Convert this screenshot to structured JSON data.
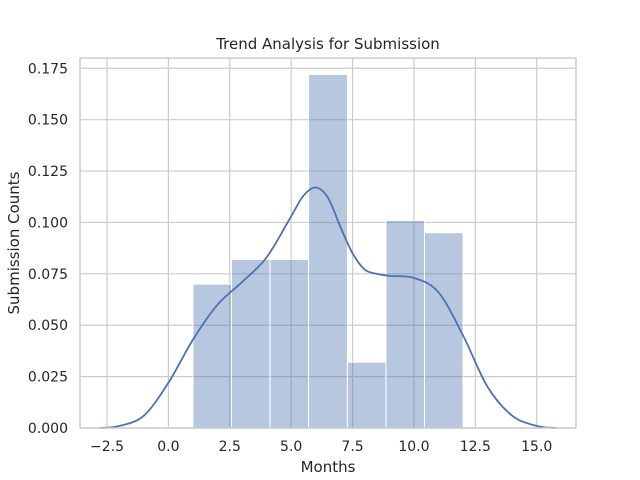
{
  "chart_data": {
    "type": "bar",
    "title": "Trend Analysis for Submission",
    "xlabel": "Months",
    "ylabel": "Submission Counts",
    "xlim": [
      -3.6,
      16.6
    ],
    "ylim": [
      0,
      0.18
    ],
    "xticks": [
      -2.5,
      0.0,
      2.5,
      5.0,
      7.5,
      10.0,
      12.5,
      15.0
    ],
    "xtick_labels": [
      "−2.5",
      "0.0",
      "2.5",
      "5.0",
      "7.5",
      "10.0",
      "12.5",
      "15.0"
    ],
    "yticks": [
      0.0,
      0.025,
      0.05,
      0.075,
      0.1,
      0.125,
      0.15,
      0.175
    ],
    "ytick_labels": [
      "0.000",
      "0.025",
      "0.050",
      "0.075",
      "0.100",
      "0.125",
      "0.150",
      "0.175"
    ],
    "grid": true,
    "bins": [
      {
        "x0": 1.0,
        "x1": 2.57,
        "value": 0.07
      },
      {
        "x0": 2.57,
        "x1": 4.14,
        "value": 0.082
      },
      {
        "x0": 4.14,
        "x1": 5.71,
        "value": 0.082
      },
      {
        "x0": 5.71,
        "x1": 7.29,
        "value": 0.172
      },
      {
        "x0": 7.29,
        "x1": 8.86,
        "value": 0.032
      },
      {
        "x0": 8.86,
        "x1": 10.43,
        "value": 0.101
      },
      {
        "x0": 10.43,
        "x1": 12.0,
        "value": 0.095
      }
    ],
    "density_curve": {
      "x": [
        -2.8,
        -2.0,
        -1.0,
        0.0,
        1.0,
        2.0,
        3.0,
        4.0,
        5.0,
        5.5,
        6.0,
        6.5,
        7.0,
        7.5,
        8.0,
        8.5,
        9.0,
        10.0,
        11.0,
        12.0,
        13.0,
        14.0,
        15.0,
        15.8
      ],
      "y": [
        0.0,
        0.001,
        0.006,
        0.022,
        0.043,
        0.06,
        0.071,
        0.083,
        0.103,
        0.113,
        0.117,
        0.112,
        0.098,
        0.085,
        0.077,
        0.075,
        0.074,
        0.073,
        0.066,
        0.045,
        0.02,
        0.006,
        0.001,
        0.0
      ]
    },
    "colors": {
      "bar_fill": "#4c72b0",
      "bar_opacity": 0.4,
      "curve": "#4c72b0",
      "grid": "#cccccc",
      "spine": "#cccccc"
    }
  }
}
